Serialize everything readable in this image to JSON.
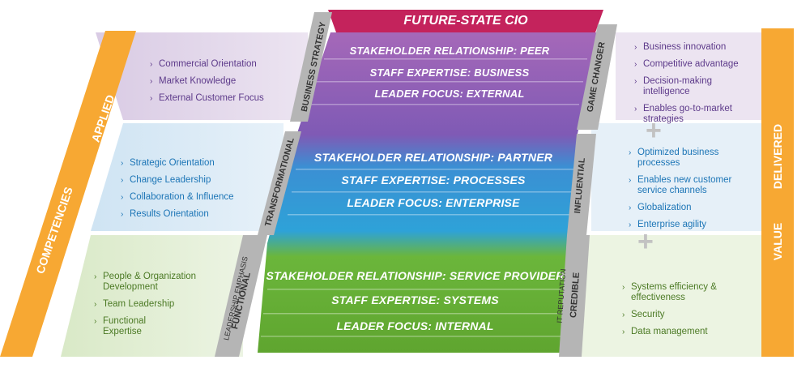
{
  "title": "FUTURE-STATE CIO",
  "left_pillar": {
    "top": "APPLIED",
    "bottom": "COMPETENCIES"
  },
  "right_pillar": {
    "top": "DELIVERED",
    "bottom": "VALUE"
  },
  "center_left_labels": {
    "business": "BUSINESS STRATEGY",
    "transformational": "TRANSFORMATIONAL",
    "functional": "FUNCTIONAL",
    "emphasis": "LEADERSHIP EMPHASIS"
  },
  "center_right_labels": {
    "game_changer": "GAME CHANGER",
    "influential": "INFLUENTIAL",
    "credible": "CREDIBLE",
    "reputation": "IT REPUTATION"
  },
  "tiers": {
    "top": [
      "STAKEHOLDER RELATIONSHIP: PEER",
      "STAFF EXPERTISE: BUSINESS",
      "LEADER FOCUS: EXTERNAL"
    ],
    "middle": [
      "STAKEHOLDER RELATIONSHIP: PARTNER",
      "STAFF EXPERTISE: PROCESSES",
      "LEADER FOCUS: ENTERPRISE"
    ],
    "bottom": [
      "STAKEHOLDER RELATIONSHIP: SERVICE PROVIDER",
      "STAFF EXPERTISE: SYSTEMS",
      "LEADER FOCUS: INTERNAL"
    ]
  },
  "competencies": {
    "top": [
      "Commercial Orientation",
      "Market Knowledge",
      "External Customer Focus"
    ],
    "middle": [
      "Strategic Orientation",
      "Change Leadership",
      "Collaboration & Influence",
      "Results Orientation"
    ],
    "bottom": [
      "People & Organization Development",
      "Team Leadership",
      "Functional Expertise"
    ]
  },
  "value": {
    "top": [
      "Business innovation",
      "Competitive advantage",
      "Decision-making intelligence",
      "Enables go-to-market strategies"
    ],
    "middle": [
      "Optimized business processes",
      "Enables new customer service channels",
      "Globalization",
      "Enterprise agility"
    ],
    "bottom": [
      "Systems efficiency & effectiveness",
      "Security",
      "Data management"
    ]
  },
  "colors": {
    "orange": "#f7a833",
    "title_red": "#c4235c",
    "purple": "#9a5fb0",
    "blue": "#2f93d3",
    "green": "#79b83a",
    "gray_label": "#b3b3b3"
  }
}
